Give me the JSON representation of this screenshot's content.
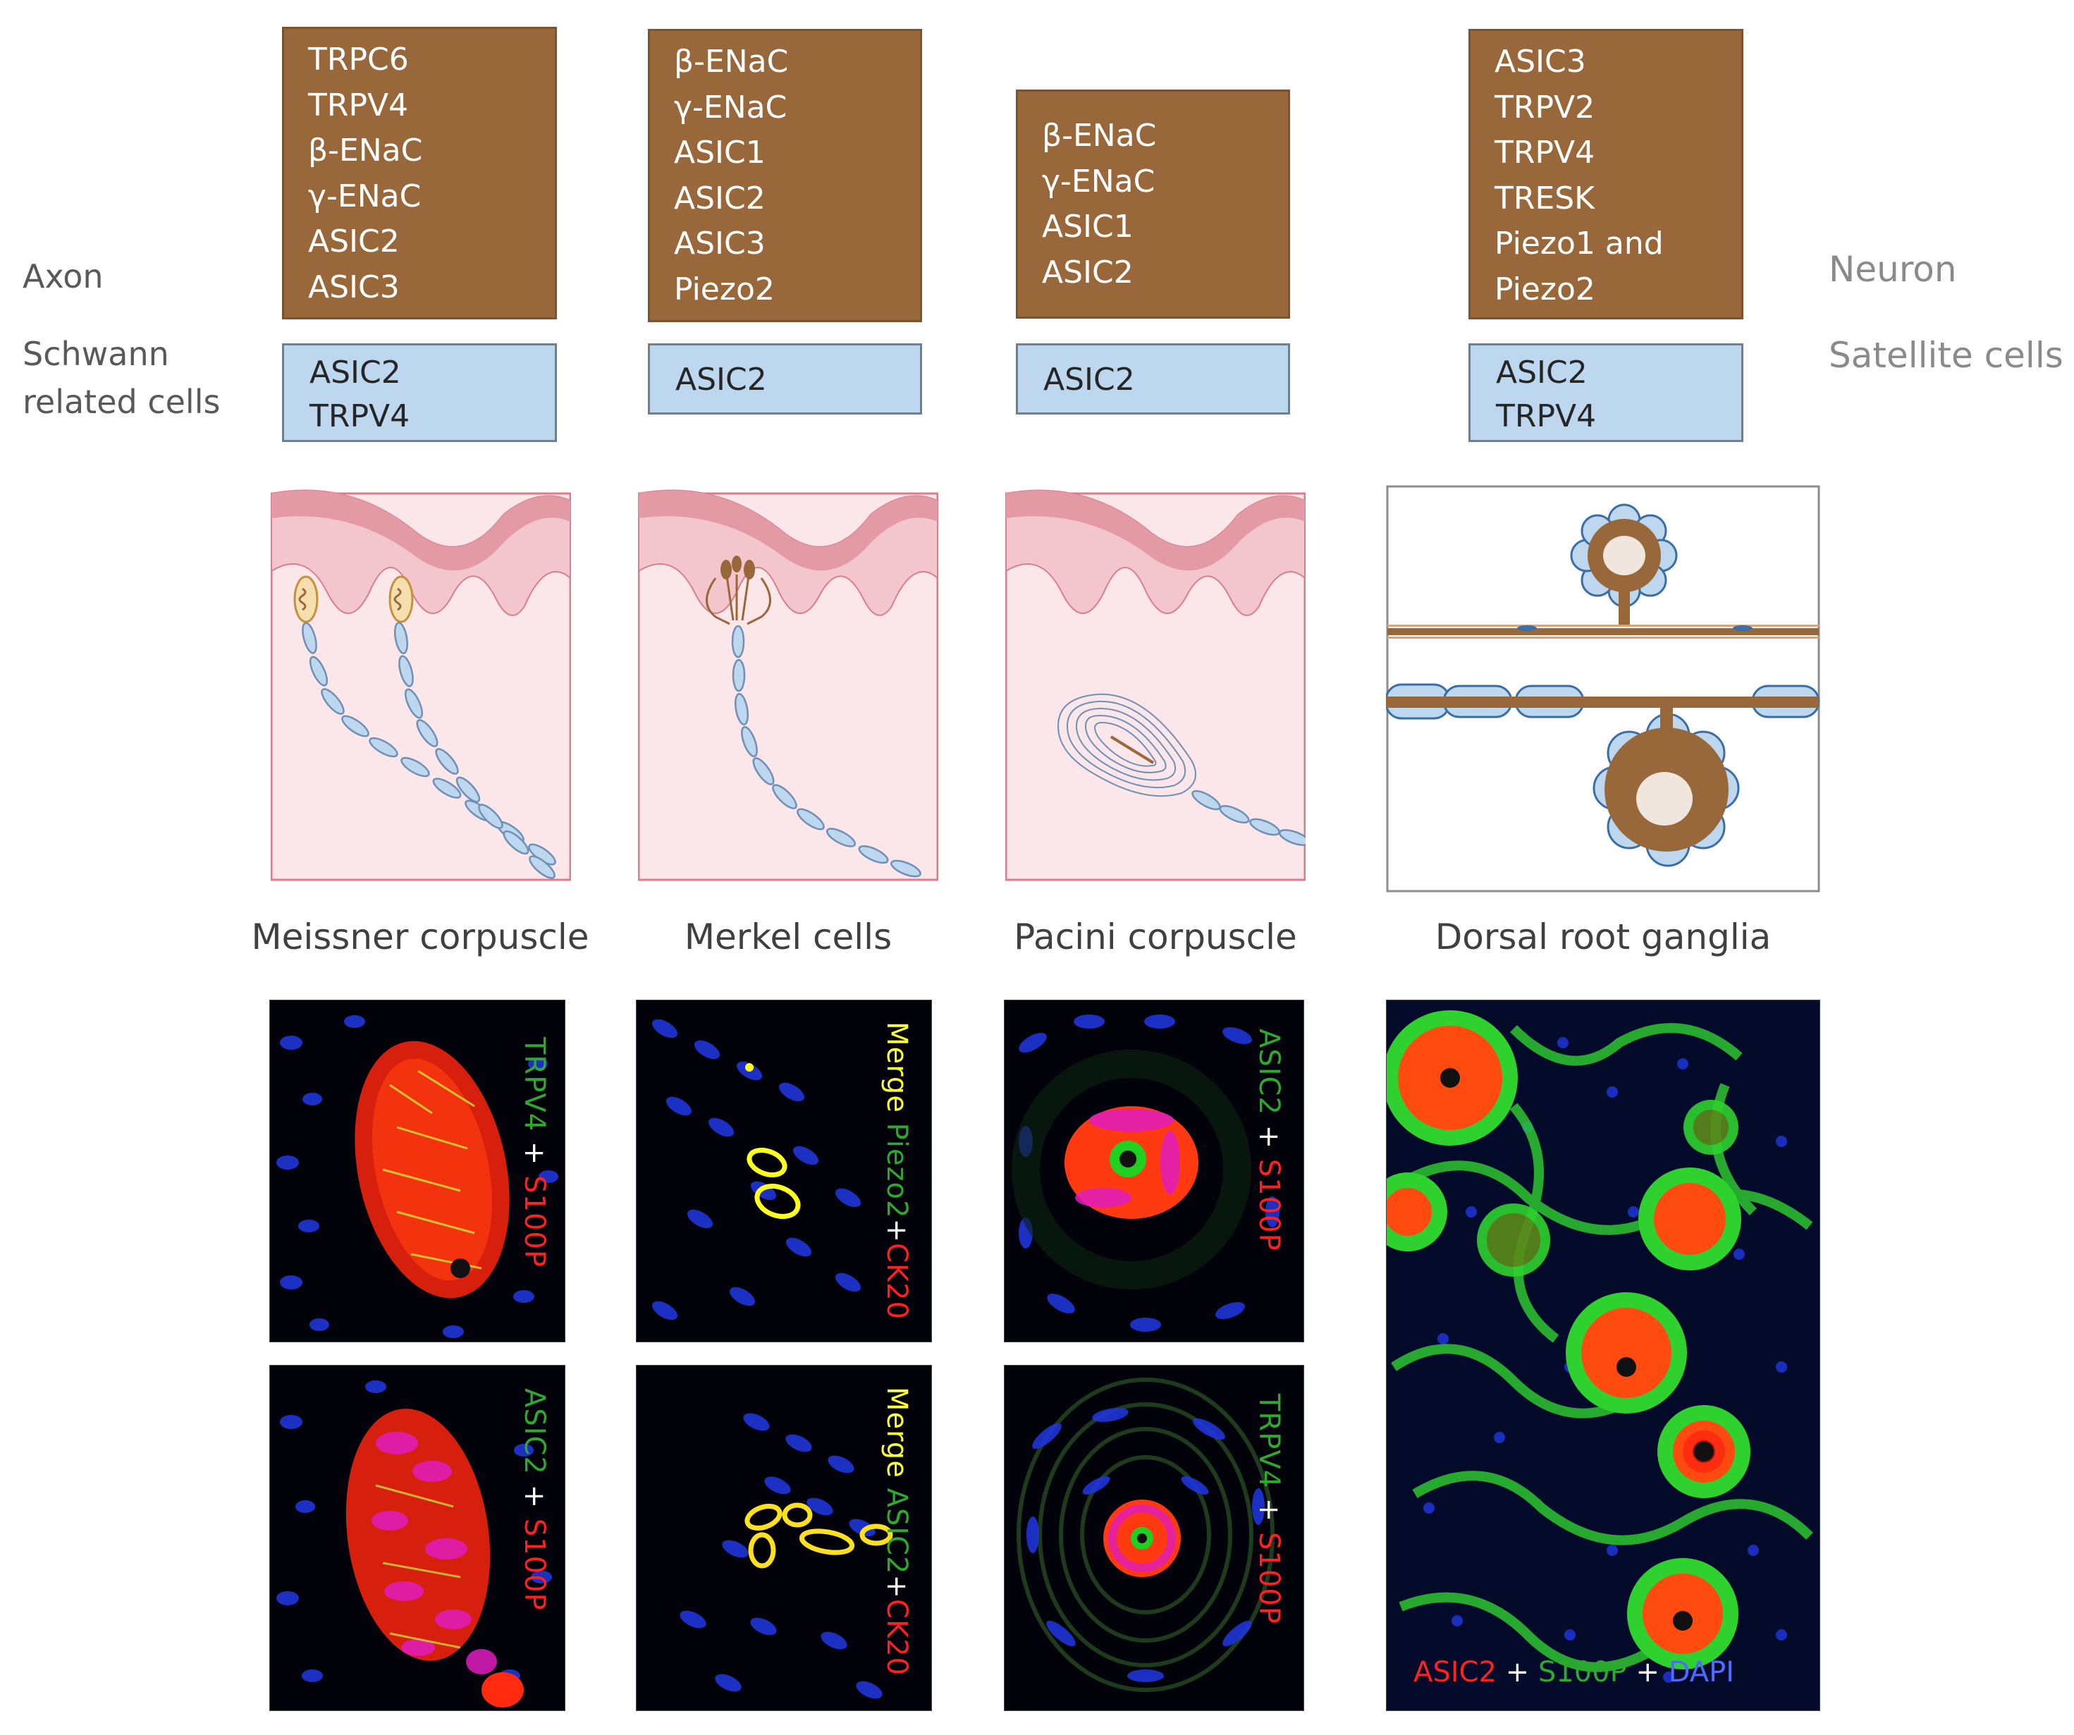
{
  "row_labels": {
    "axon": "Axon",
    "schwann": [
      "Schwann",
      "related cells"
    ],
    "neuron": "Neuron",
    "satellite": "Satellite cells"
  },
  "columns": [
    {
      "caption": "Meissner corpuscle",
      "axon_channels": [
        "TRPC6",
        "TRPV4",
        "β-ENaC",
        "γ-ENaC",
        "ASIC2",
        "ASIC3"
      ],
      "glial_channels": [
        "ASIC2",
        "TRPV4"
      ],
      "stains": [
        {
          "a": "TRPV4",
          "plus1": " + ",
          "b": "S100P"
        },
        {
          "a": "ASIC2",
          "plus1": " + ",
          "b": "S100P"
        }
      ]
    },
    {
      "caption": "Merkel cells",
      "axon_channels": [
        "β-ENaC",
        "γ-ENaC",
        "ASIC1",
        "ASIC2",
        "ASIC3",
        "Piezo2"
      ],
      "glial_channels": [
        "ASIC2"
      ],
      "stains": [
        {
          "merge": "Merge ",
          "a": "Piezo2",
          "plus1": "+",
          "b": "CK20"
        },
        {
          "merge": "Merge ",
          "a": "ASIC2",
          "plus1": "+",
          "b": "CK20"
        }
      ]
    },
    {
      "caption": "Pacini corpuscle",
      "axon_channels": [
        "β-ENaC",
        "γ-ENaC",
        "ASIC1",
        "ASIC2"
      ],
      "glial_channels": [
        "ASIC2"
      ],
      "stains": [
        {
          "a": "ASIC2",
          "plus1": " + ",
          "b": "S100P"
        },
        {
          "a": "TRPV4",
          "plus1": " + ",
          "b": "S100P"
        }
      ]
    },
    {
      "caption": "Dorsal root ganglia",
      "axon_channels": [
        "ASIC3",
        "TRPV2",
        "TRPV4",
        "TRESK",
        "Piezo1 and",
        "Piezo2"
      ],
      "glial_channels": [
        "ASIC2",
        "TRPV4"
      ],
      "stains": [
        {
          "a": "ASIC2",
          "plus1": " + ",
          "b": "S100P",
          "plus2": " + ",
          "c": "DAPI"
        }
      ]
    }
  ],
  "colors": {
    "axon_box": "#99683a",
    "glial_box": "#bdd7ee",
    "skin_top": "#e39aa4",
    "skin_mid": "#f3c5cc",
    "dermis": "#fbe6ea",
    "schwann": "#bdd7ee",
    "neuron": "#99683a",
    "nuclei_stain": "#1a2cd6",
    "green_stain": "#2fd12f",
    "red_stain": "#ff2a10"
  }
}
